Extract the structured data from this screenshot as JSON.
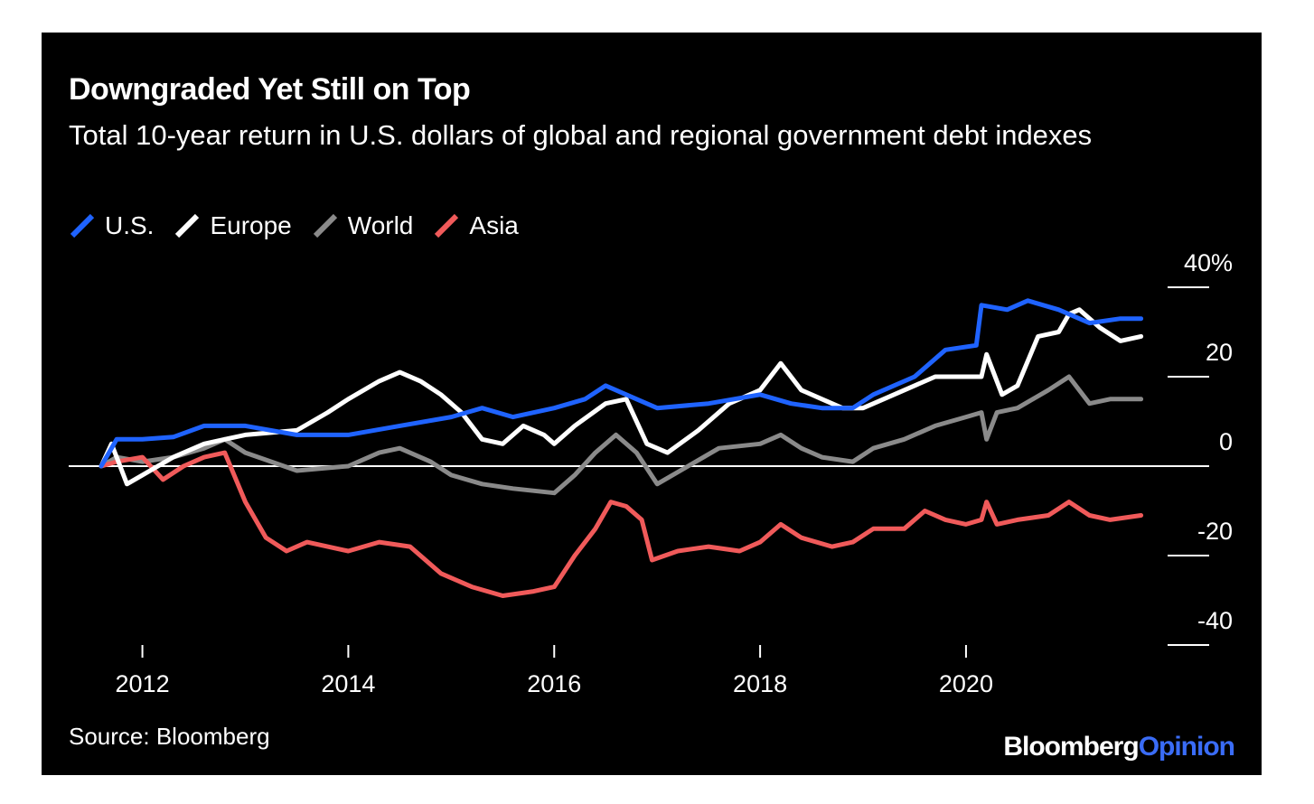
{
  "header": {
    "title": "Downgraded Yet Still on Top",
    "subtitle": "Total 10-year return in U.S. dollars of global and regional government debt indexes"
  },
  "footer": {
    "source": "Source: Bloomberg",
    "logo_main": "Bloomberg",
    "logo_accent": "Opinion"
  },
  "colors": {
    "background": "#000000",
    "us": "#1f63ff",
    "europe": "#ffffff",
    "world": "#8a8a8a",
    "asia": "#f05a5a"
  },
  "chart_data": {
    "type": "line",
    "title": "Downgraded Yet Still on Top",
    "subtitle": "Total 10-year return in U.S. dollars of global and regional government debt indexes",
    "xlim": [
      2011.6,
      2021.8
    ],
    "ylim": [
      -40,
      40
    ],
    "x_ticks": [
      2012,
      2014,
      2016,
      2018,
      2020
    ],
    "x_tick_labels": [
      "2012",
      "2014",
      "2016",
      "2018",
      "2020"
    ],
    "y_ticks": [
      40,
      20,
      0,
      -20,
      -40
    ],
    "y_tick_labels": [
      "40%",
      "20",
      "0",
      "-20",
      "-40"
    ],
    "zero_line": true,
    "legend_position": "top-left",
    "series": [
      {
        "name": "U.S.",
        "color": "#1f63ff",
        "points": [
          [
            2011.6,
            0
          ],
          [
            2011.75,
            6
          ],
          [
            2012.0,
            6
          ],
          [
            2012.3,
            6.5
          ],
          [
            2012.6,
            9
          ],
          [
            2013.0,
            9
          ],
          [
            2013.5,
            7
          ],
          [
            2014.0,
            7
          ],
          [
            2014.5,
            9
          ],
          [
            2015.0,
            11
          ],
          [
            2015.3,
            13
          ],
          [
            2015.6,
            11
          ],
          [
            2016.0,
            13
          ],
          [
            2016.3,
            15
          ],
          [
            2016.5,
            18
          ],
          [
            2016.8,
            15
          ],
          [
            2017.0,
            13
          ],
          [
            2017.5,
            14
          ],
          [
            2018.0,
            16
          ],
          [
            2018.3,
            14
          ],
          [
            2018.6,
            13
          ],
          [
            2018.9,
            13
          ],
          [
            2019.1,
            16
          ],
          [
            2019.5,
            20
          ],
          [
            2019.8,
            26
          ],
          [
            2020.1,
            27
          ],
          [
            2020.15,
            36
          ],
          [
            2020.4,
            35
          ],
          [
            2020.6,
            37
          ],
          [
            2020.9,
            35
          ],
          [
            2021.2,
            32
          ],
          [
            2021.5,
            33
          ],
          [
            2021.7,
            33
          ]
        ]
      },
      {
        "name": "Europe",
        "color": "#ffffff",
        "points": [
          [
            2011.6,
            0
          ],
          [
            2011.7,
            5
          ],
          [
            2011.85,
            -4
          ],
          [
            2012.0,
            -2
          ],
          [
            2012.3,
            2
          ],
          [
            2012.6,
            5
          ],
          [
            2013.0,
            7
          ],
          [
            2013.5,
            8
          ],
          [
            2013.8,
            12
          ],
          [
            2014.0,
            15
          ],
          [
            2014.3,
            19
          ],
          [
            2014.5,
            21
          ],
          [
            2014.7,
            19
          ],
          [
            2014.9,
            16
          ],
          [
            2015.1,
            12
          ],
          [
            2015.3,
            6
          ],
          [
            2015.5,
            5
          ],
          [
            2015.7,
            9
          ],
          [
            2015.9,
            7
          ],
          [
            2016.0,
            5
          ],
          [
            2016.2,
            9
          ],
          [
            2016.5,
            14
          ],
          [
            2016.7,
            15
          ],
          [
            2016.9,
            5
          ],
          [
            2017.1,
            3
          ],
          [
            2017.4,
            8
          ],
          [
            2017.7,
            14
          ],
          [
            2018.0,
            17
          ],
          [
            2018.2,
            23
          ],
          [
            2018.4,
            17
          ],
          [
            2018.6,
            15
          ],
          [
            2018.8,
            13
          ],
          [
            2019.0,
            13
          ],
          [
            2019.2,
            15
          ],
          [
            2019.5,
            18
          ],
          [
            2019.7,
            20
          ],
          [
            2020.0,
            20
          ],
          [
            2020.15,
            20
          ],
          [
            2020.2,
            25
          ],
          [
            2020.35,
            16
          ],
          [
            2020.5,
            18
          ],
          [
            2020.7,
            29
          ],
          [
            2020.9,
            30
          ],
          [
            2021.0,
            34
          ],
          [
            2021.1,
            35
          ],
          [
            2021.3,
            31
          ],
          [
            2021.5,
            28
          ],
          [
            2021.7,
            29
          ]
        ]
      },
      {
        "name": "World",
        "color": "#8a8a8a",
        "points": [
          [
            2011.6,
            0
          ],
          [
            2011.75,
            2
          ],
          [
            2012.0,
            1
          ],
          [
            2012.3,
            2
          ],
          [
            2012.6,
            4
          ],
          [
            2012.8,
            6
          ],
          [
            2013.0,
            3
          ],
          [
            2013.5,
            -1
          ],
          [
            2014.0,
            0
          ],
          [
            2014.3,
            3
          ],
          [
            2014.5,
            4
          ],
          [
            2014.8,
            1
          ],
          [
            2015.0,
            -2
          ],
          [
            2015.3,
            -4
          ],
          [
            2015.6,
            -5
          ],
          [
            2016.0,
            -6
          ],
          [
            2016.2,
            -2
          ],
          [
            2016.4,
            3
          ],
          [
            2016.6,
            7
          ],
          [
            2016.8,
            3
          ],
          [
            2017.0,
            -4
          ],
          [
            2017.3,
            0
          ],
          [
            2017.6,
            4
          ],
          [
            2018.0,
            5
          ],
          [
            2018.2,
            7
          ],
          [
            2018.4,
            4
          ],
          [
            2018.6,
            2
          ],
          [
            2018.9,
            1
          ],
          [
            2019.1,
            4
          ],
          [
            2019.4,
            6
          ],
          [
            2019.7,
            9
          ],
          [
            2020.0,
            11
          ],
          [
            2020.15,
            12
          ],
          [
            2020.2,
            6
          ],
          [
            2020.3,
            12
          ],
          [
            2020.5,
            13
          ],
          [
            2020.8,
            17
          ],
          [
            2021.0,
            20
          ],
          [
            2021.2,
            14
          ],
          [
            2021.4,
            15
          ],
          [
            2021.7,
            15
          ]
        ]
      },
      {
        "name": "Asia",
        "color": "#f05a5a",
        "points": [
          [
            2011.6,
            0
          ],
          [
            2011.75,
            1
          ],
          [
            2012.0,
            2
          ],
          [
            2012.2,
            -3
          ],
          [
            2012.4,
            0
          ],
          [
            2012.6,
            2
          ],
          [
            2012.8,
            3
          ],
          [
            2013.0,
            -8
          ],
          [
            2013.2,
            -16
          ],
          [
            2013.4,
            -19
          ],
          [
            2013.6,
            -17
          ],
          [
            2013.8,
            -18
          ],
          [
            2014.0,
            -19
          ],
          [
            2014.3,
            -17
          ],
          [
            2014.6,
            -18
          ],
          [
            2014.9,
            -24
          ],
          [
            2015.2,
            -27
          ],
          [
            2015.5,
            -29
          ],
          [
            2015.8,
            -28
          ],
          [
            2016.0,
            -27
          ],
          [
            2016.2,
            -20
          ],
          [
            2016.4,
            -14
          ],
          [
            2016.55,
            -8
          ],
          [
            2016.7,
            -9
          ],
          [
            2016.85,
            -12
          ],
          [
            2016.95,
            -21
          ],
          [
            2017.2,
            -19
          ],
          [
            2017.5,
            -18
          ],
          [
            2017.8,
            -19
          ],
          [
            2018.0,
            -17
          ],
          [
            2018.2,
            -13
          ],
          [
            2018.4,
            -16
          ],
          [
            2018.7,
            -18
          ],
          [
            2018.9,
            -17
          ],
          [
            2019.1,
            -14
          ],
          [
            2019.4,
            -14
          ],
          [
            2019.6,
            -10
          ],
          [
            2019.8,
            -12
          ],
          [
            2020.0,
            -13
          ],
          [
            2020.15,
            -12
          ],
          [
            2020.2,
            -8
          ],
          [
            2020.3,
            -13
          ],
          [
            2020.5,
            -12
          ],
          [
            2020.8,
            -11
          ],
          [
            2021.0,
            -8
          ],
          [
            2021.2,
            -11
          ],
          [
            2021.4,
            -12
          ],
          [
            2021.7,
            -11
          ]
        ]
      }
    ]
  }
}
